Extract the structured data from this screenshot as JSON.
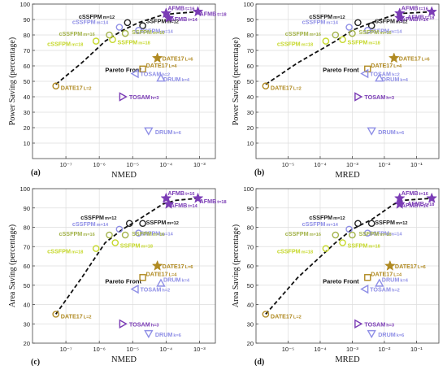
{
  "figure": {
    "panel_labels": [
      "(a)",
      "(b)",
      "(c)",
      "(d)"
    ]
  },
  "colors": {
    "purple": "#7a3bb5",
    "lavender": "#8f8fe6",
    "olive": "#a3b34a",
    "yellow_green": "#c6d82b",
    "gold": "#b08a22",
    "black": "#222222",
    "grid": "#dddddd"
  },
  "chart_data": [
    {
      "type": "scatter",
      "panel": "(a)",
      "xlabel": "NMED",
      "ylabel": "Power Saving (percentage)",
      "x_scale": "log",
      "xlim": [
        1e-08,
        0.003
      ],
      "ylim": [
        0,
        100
      ],
      "x_ticks": [
        1e-07,
        1e-06,
        1e-05,
        0.0001,
        0.001
      ],
      "x_tick_labels": [
        "10⁻⁷",
        "10⁻⁶",
        "10⁻⁵",
        "10⁻⁴",
        "10⁻³"
      ],
      "y_ticks": [
        10,
        20,
        30,
        40,
        50,
        60,
        70,
        80,
        90,
        100
      ],
      "grid": true,
      "pareto_label": "Pareto Front",
      "pareto_label_at": [
        1.5e-06,
        56
      ],
      "pareto_front": [
        [
          5e-08,
          48
        ],
        [
          3e-07,
          62
        ],
        [
          1.5e-06,
          76
        ],
        [
          5e-06,
          83
        ],
        [
          1.5e-05,
          88
        ],
        [
          8e-05,
          93
        ],
        [
          0.0002,
          94
        ],
        [
          0.0009,
          95
        ]
      ],
      "points": [
        {
          "label": "AFMB t=16",
          "x": 0.0001,
          "y": 94,
          "marker": "star",
          "color": "purple",
          "label_dx": 2,
          "label_dy": -4
        },
        {
          "label": "AFMB t=18",
          "x": 0.0009,
          "y": 95,
          "marker": "star",
          "color": "purple",
          "label_dx": 2,
          "label_dy": 5
        },
        {
          "label": "AFMB t=14",
          "x": 0.00012,
          "y": 91,
          "marker": "star",
          "color": "purple",
          "label_dx": 2,
          "label_dy": 4
        },
        {
          "label": "cSSFPM m=12",
          "x": 7e-06,
          "y": 88,
          "marker": "circle",
          "color": "black",
          "label_dx": -60,
          "label_dy": -5
        },
        {
          "label": "SSFPM m=12",
          "x": 2e-05,
          "y": 86,
          "marker": "circle",
          "color": "black",
          "label_dx": 4,
          "label_dy": -3
        },
        {
          "label": "cSSFPM m=14",
          "x": 4e-06,
          "y": 85,
          "marker": "circle",
          "color": "lavender",
          "label_dx": -58,
          "label_dy": -4
        },
        {
          "label": "SSFPM m=14",
          "x": 1.5e-05,
          "y": 83,
          "marker": "circle",
          "color": "lavender",
          "label_dx": 2,
          "label_dy": 3
        },
        {
          "label": "cSSFPM m=16",
          "x": 2e-06,
          "y": 80,
          "marker": "circle",
          "color": "olive",
          "label_dx": -62,
          "label_dy": 1
        },
        {
          "label": "SSFPM m=16",
          "x": 6e-06,
          "y": 81,
          "marker": "circle",
          "color": "olive",
          "label_dx": 8,
          "label_dy": 1
        },
        {
          "label": "cSSFPM m=18",
          "x": 8e-07,
          "y": 76,
          "marker": "circle",
          "color": "yellow_green",
          "label_dx": -60,
          "label_dy": 6
        },
        {
          "label": "SSFPM m=18",
          "x": 2.5e-06,
          "y": 77,
          "marker": "circle",
          "color": "yellow_green",
          "label_dx": 6,
          "label_dy": 6
        },
        {
          "label": "DATE17 L=6",
          "x": 5.5e-05,
          "y": 65,
          "marker": "star",
          "color": "gold",
          "label_dx": 6,
          "label_dy": 3
        },
        {
          "label": "DATE17 L=4",
          "x": 2e-05,
          "y": 58,
          "marker": "square",
          "color": "gold",
          "label_dx": 4,
          "label_dy": -2
        },
        {
          "label": "TOSAM h=2",
          "x": 1.2e-05,
          "y": 55,
          "marker": "triangle-left",
          "color": "lavender",
          "label_dx": 6,
          "label_dy": 3
        },
        {
          "label": "DRUM k=4",
          "x": 7e-05,
          "y": 52,
          "marker": "triangle-up",
          "color": "lavender",
          "label_dx": 3,
          "label_dy": 4
        },
        {
          "label": "DATE17 L=2",
          "x": 5e-08,
          "y": 47,
          "marker": "circle",
          "color": "gold",
          "label_dx": 6,
          "label_dy": 5
        },
        {
          "label": "TOSAM h=3",
          "x": 5e-06,
          "y": 40,
          "marker": "triangle-right",
          "color": "purple",
          "label_dx": 8,
          "label_dy": 3
        },
        {
          "label": "DRUM k=6",
          "x": 3e-05,
          "y": 18,
          "marker": "triangle-down",
          "color": "lavender",
          "label_dx": 8,
          "label_dy": 4
        }
      ]
    },
    {
      "type": "scatter",
      "panel": "(b)",
      "xlabel": "MRED",
      "ylabel": "Power Saving (percentage)",
      "x_scale": "log",
      "xlim": [
        1e-06,
        0.5
      ],
      "ylim": [
        0,
        100
      ],
      "x_ticks": [
        1e-05,
        0.0001,
        0.001,
        0.01,
        0.1
      ],
      "x_tick_labels": [
        "10⁻⁵",
        "10⁻⁴",
        "10⁻³",
        "10⁻²",
        "10⁻¹"
      ],
      "y_ticks": [
        10,
        20,
        30,
        40,
        50,
        60,
        70,
        80,
        90,
        100
      ],
      "grid": true,
      "pareto_label": "Pareto Front",
      "pareto_label_at": [
        0.00012,
        56
      ],
      "pareto_front": [
        [
          2e-06,
          48
        ],
        [
          2e-05,
          62
        ],
        [
          0.0003,
          76
        ],
        [
          0.001,
          83
        ],
        [
          0.004,
          88
        ],
        [
          0.02,
          93
        ],
        [
          0.04,
          94
        ],
        [
          0.3,
          95
        ]
      ],
      "points": [
        {
          "label": "AFMB t=16",
          "x": 0.03,
          "y": 94,
          "marker": "star",
          "color": "purple",
          "label_dx": 2,
          "label_dy": -4
        },
        {
          "label": "AFMB t=18",
          "x": 0.3,
          "y": 95,
          "marker": "star",
          "color": "purple",
          "label_dx": -30,
          "label_dy": 9
        },
        {
          "label": "AFMB t=14",
          "x": 0.03,
          "y": 91,
          "marker": "star",
          "color": "purple",
          "label_dx": 2,
          "label_dy": 4
        },
        {
          "label": "cSSFPM m=12",
          "x": 0.0015,
          "y": 88,
          "marker": "circle",
          "color": "black",
          "label_dx": -60,
          "label_dy": -5
        },
        {
          "label": "SSFPM m=12",
          "x": 0.004,
          "y": 86,
          "marker": "circle",
          "color": "black",
          "label_dx": 4,
          "label_dy": -3
        },
        {
          "label": "cSSFPM m=14",
          "x": 0.0008,
          "y": 85,
          "marker": "circle",
          "color": "lavender",
          "label_dx": -58,
          "label_dy": -4
        },
        {
          "label": "SSFPM m=14",
          "x": 0.003,
          "y": 83,
          "marker": "circle",
          "color": "lavender",
          "label_dx": 2,
          "label_dy": 3
        },
        {
          "label": "cSSFPM m=16",
          "x": 0.0003,
          "y": 80,
          "marker": "circle",
          "color": "olive",
          "label_dx": -62,
          "label_dy": 1
        },
        {
          "label": "SSFPM m=16",
          "x": 0.001,
          "y": 81,
          "marker": "circle",
          "color": "olive",
          "label_dx": 8,
          "label_dy": 1
        },
        {
          "label": "cSSFPM m=18",
          "x": 0.00015,
          "y": 76,
          "marker": "circle",
          "color": "yellow_green",
          "label_dx": -60,
          "label_dy": 6
        },
        {
          "label": "SSFPM m=18",
          "x": 0.0005,
          "y": 77,
          "marker": "circle",
          "color": "yellow_green",
          "label_dx": 6,
          "label_dy": 6
        },
        {
          "label": "DATE17 L=6",
          "x": 0.02,
          "y": 65,
          "marker": "star",
          "color": "gold",
          "label_dx": 6,
          "label_dy": 3
        },
        {
          "label": "DATE17 L=4",
          "x": 0.003,
          "y": 58,
          "marker": "square",
          "color": "gold",
          "label_dx": 4,
          "label_dy": -2
        },
        {
          "label": "TOSAM h=2",
          "x": 0.0025,
          "y": 55,
          "marker": "triangle-left",
          "color": "lavender",
          "label_dx": 6,
          "label_dy": 3
        },
        {
          "label": "DRUM k=4",
          "x": 0.007,
          "y": 52,
          "marker": "triangle-up",
          "color": "lavender",
          "label_dx": 3,
          "label_dy": 4
        },
        {
          "label": "DATE17 L=2",
          "x": 2e-06,
          "y": 47,
          "marker": "circle",
          "color": "gold",
          "label_dx": 6,
          "label_dy": 5
        },
        {
          "label": "TOSAM h=3",
          "x": 0.0015,
          "y": 40,
          "marker": "triangle-right",
          "color": "purple",
          "label_dx": 8,
          "label_dy": 3
        },
        {
          "label": "DRUM k=6",
          "x": 0.004,
          "y": 18,
          "marker": "triangle-down",
          "color": "lavender",
          "label_dx": 8,
          "label_dy": 4
        }
      ]
    },
    {
      "type": "scatter",
      "panel": "(c)",
      "xlabel": "NMED",
      "ylabel": "Area Saving (percentage)",
      "x_scale": "log",
      "xlim": [
        1e-08,
        0.003
      ],
      "ylim": [
        20,
        100
      ],
      "x_ticks": [
        1e-07,
        1e-06,
        1e-05,
        0.0001,
        0.001
      ],
      "x_tick_labels": [
        "10⁻⁷",
        "10⁻⁶",
        "10⁻⁵",
        "10⁻⁴",
        "10⁻³"
      ],
      "y_ticks": [
        20,
        30,
        40,
        50,
        60,
        70,
        80,
        90,
        100
      ],
      "grid": true,
      "pareto_label": "Pareto Front",
      "pareto_label_at": [
        1.5e-06,
        51
      ],
      "pareto_front": [
        [
          5e-08,
          35
        ],
        [
          3e-07,
          54
        ],
        [
          1.5e-06,
          72
        ],
        [
          5e-06,
          79
        ],
        [
          1.5e-05,
          84
        ],
        [
          8e-05,
          92
        ],
        [
          0.0002,
          94
        ],
        [
          0.0009,
          95
        ]
      ],
      "points": [
        {
          "label": "AFMB t=16",
          "x": 0.0001,
          "y": 95,
          "marker": "star",
          "color": "purple",
          "label_dx": 2,
          "label_dy": -4
        },
        {
          "label": "AFMB t=18",
          "x": 0.0009,
          "y": 95,
          "marker": "star",
          "color": "purple",
          "label_dx": 2,
          "label_dy": 6
        },
        {
          "label": "AFMB t=14",
          "x": 0.00012,
          "y": 92,
          "marker": "star",
          "color": "purple",
          "label_dx": 2,
          "label_dy": 4
        },
        {
          "label": "cSSFPM m=12",
          "x": 8e-06,
          "y": 82,
          "marker": "circle",
          "color": "black",
          "label_dx": -60,
          "label_dy": -5
        },
        {
          "label": "SSFPM m=12",
          "x": 2e-05,
          "y": 82,
          "marker": "circle",
          "color": "black",
          "label_dx": 4,
          "label_dy": 1
        },
        {
          "label": "cSSFPM m=14",
          "x": 4e-06,
          "y": 79,
          "marker": "circle",
          "color": "lavender",
          "label_dx": -58,
          "label_dy": -4
        },
        {
          "label": "SSFPM m=14",
          "x": 1.5e-05,
          "y": 77,
          "marker": "circle",
          "color": "lavender",
          "label_dx": 2,
          "label_dy": 3
        },
        {
          "label": "cSSFPM m=16",
          "x": 2e-06,
          "y": 76,
          "marker": "circle",
          "color": "olive",
          "label_dx": -62,
          "label_dy": 1
        },
        {
          "label": "SSFPM m=16",
          "x": 6e-06,
          "y": 76,
          "marker": "circle",
          "color": "olive",
          "label_dx": 8,
          "label_dy": 1
        },
        {
          "label": "cSSFPM m=18",
          "x": 8e-07,
          "y": 69,
          "marker": "circle",
          "color": "yellow_green",
          "label_dx": -60,
          "label_dy": 6
        },
        {
          "label": "SSFPM m=18",
          "x": 3e-06,
          "y": 72,
          "marker": "circle",
          "color": "yellow_green",
          "label_dx": 6,
          "label_dy": 6
        },
        {
          "label": "DATE17 L=6",
          "x": 5.5e-05,
          "y": 60,
          "marker": "star",
          "color": "gold",
          "label_dx": 6,
          "label_dy": 3
        },
        {
          "label": "DATE17 L=4",
          "x": 2e-05,
          "y": 54,
          "marker": "square",
          "color": "gold",
          "label_dx": 4,
          "label_dy": -2
        },
        {
          "label": "DRUM k=4",
          "x": 7e-05,
          "y": 51,
          "marker": "triangle-up",
          "color": "lavender",
          "label_dx": 3,
          "label_dy": -2
        },
        {
          "label": "TOSAM h=2",
          "x": 1.2e-05,
          "y": 48,
          "marker": "triangle-left",
          "color": "lavender",
          "label_dx": 6,
          "label_dy": 3
        },
        {
          "label": "DATE17 L=2",
          "x": 5e-08,
          "y": 35,
          "marker": "circle",
          "color": "gold",
          "label_dx": 6,
          "label_dy": 5
        },
        {
          "label": "TOSAM h=3",
          "x": 5e-06,
          "y": 30,
          "marker": "triangle-right",
          "color": "purple",
          "label_dx": 8,
          "label_dy": 3
        },
        {
          "label": "DRUM k=6",
          "x": 3e-05,
          "y": 25,
          "marker": "triangle-down",
          "color": "lavender",
          "label_dx": 8,
          "label_dy": 4
        }
      ]
    },
    {
      "type": "scatter",
      "panel": "(d)",
      "xlabel": "MRED",
      "ylabel": "Area Saving (percentage)",
      "x_scale": "log",
      "xlim": [
        1e-06,
        0.5
      ],
      "ylim": [
        20,
        100
      ],
      "x_ticks": [
        1e-05,
        0.0001,
        0.001,
        0.01,
        0.1
      ],
      "x_tick_labels": [
        "10⁻⁵",
        "10⁻⁴",
        "10⁻³",
        "10⁻²",
        "10⁻¹"
      ],
      "y_ticks": [
        20,
        30,
        40,
        50,
        60,
        70,
        80,
        90,
        100
      ],
      "grid": true,
      "pareto_label": "Pareto Front",
      "pareto_label_at": [
        0.00012,
        51
      ],
      "pareto_front": [
        [
          2e-06,
          35
        ],
        [
          2e-05,
          54
        ],
        [
          0.0003,
          72
        ],
        [
          0.001,
          79
        ],
        [
          0.004,
          84
        ],
        [
          0.02,
          92
        ],
        [
          0.04,
          94
        ],
        [
          0.3,
          95
        ]
      ],
      "points": [
        {
          "label": "AFMB t=16",
          "x": 0.03,
          "y": 95,
          "marker": "star",
          "color": "purple",
          "label_dx": 2,
          "label_dy": -4
        },
        {
          "label": "AFMB t=18",
          "x": 0.3,
          "y": 95,
          "marker": "star",
          "color": "purple",
          "label_dx": -30,
          "label_dy": 9
        },
        {
          "label": "AFMB t=14",
          "x": 0.03,
          "y": 92,
          "marker": "star",
          "color": "purple",
          "label_dx": 2,
          "label_dy": 4
        },
        {
          "label": "cSSFPM m=12",
          "x": 0.0015,
          "y": 82,
          "marker": "circle",
          "color": "black",
          "label_dx": -60,
          "label_dy": -5
        },
        {
          "label": "SSFPM m=12",
          "x": 0.004,
          "y": 82,
          "marker": "circle",
          "color": "black",
          "label_dx": 4,
          "label_dy": 1
        },
        {
          "label": "cSSFPM m=14",
          "x": 0.0008,
          "y": 79,
          "marker": "circle",
          "color": "lavender",
          "label_dx": -58,
          "label_dy": -4
        },
        {
          "label": "SSFPM m=14",
          "x": 0.003,
          "y": 77,
          "marker": "circle",
          "color": "lavender",
          "label_dx": 2,
          "label_dy": 3
        },
        {
          "label": "cSSFPM m=16",
          "x": 0.0003,
          "y": 76,
          "marker": "circle",
          "color": "olive",
          "label_dx": -62,
          "label_dy": 1
        },
        {
          "label": "SSFPM m=16",
          "x": 0.001,
          "y": 76,
          "marker": "circle",
          "color": "olive",
          "label_dx": 8,
          "label_dy": 1
        },
        {
          "label": "cSSFPM m=18",
          "x": 0.00015,
          "y": 69,
          "marker": "circle",
          "color": "yellow_green",
          "label_dx": -60,
          "label_dy": 6
        },
        {
          "label": "SSFPM m=18",
          "x": 0.0005,
          "y": 72,
          "marker": "circle",
          "color": "yellow_green",
          "label_dx": 6,
          "label_dy": 6
        },
        {
          "label": "DATE17 L=6",
          "x": 0.015,
          "y": 60,
          "marker": "star",
          "color": "gold",
          "label_dx": 6,
          "label_dy": 3
        },
        {
          "label": "DATE17 L=4",
          "x": 0.003,
          "y": 54,
          "marker": "square",
          "color": "gold",
          "label_dx": 4,
          "label_dy": -2
        },
        {
          "label": "DRUM k=4",
          "x": 0.007,
          "y": 51,
          "marker": "triangle-up",
          "color": "lavender",
          "label_dx": 3,
          "label_dy": -2
        },
        {
          "label": "TOSAM h=2",
          "x": 0.0025,
          "y": 48,
          "marker": "triangle-left",
          "color": "lavender",
          "label_dx": 6,
          "label_dy": 3
        },
        {
          "label": "DATE17 L=2",
          "x": 2e-06,
          "y": 35,
          "marker": "circle",
          "color": "gold",
          "label_dx": 6,
          "label_dy": 5
        },
        {
          "label": "TOSAM h=3",
          "x": 0.0015,
          "y": 30,
          "marker": "triangle-right",
          "color": "purple",
          "label_dx": 8,
          "label_dy": 3
        },
        {
          "label": "DRUM k=6",
          "x": 0.004,
          "y": 25,
          "marker": "triangle-down",
          "color": "lavender",
          "label_dx": 8,
          "label_dy": 4
        }
      ]
    }
  ]
}
